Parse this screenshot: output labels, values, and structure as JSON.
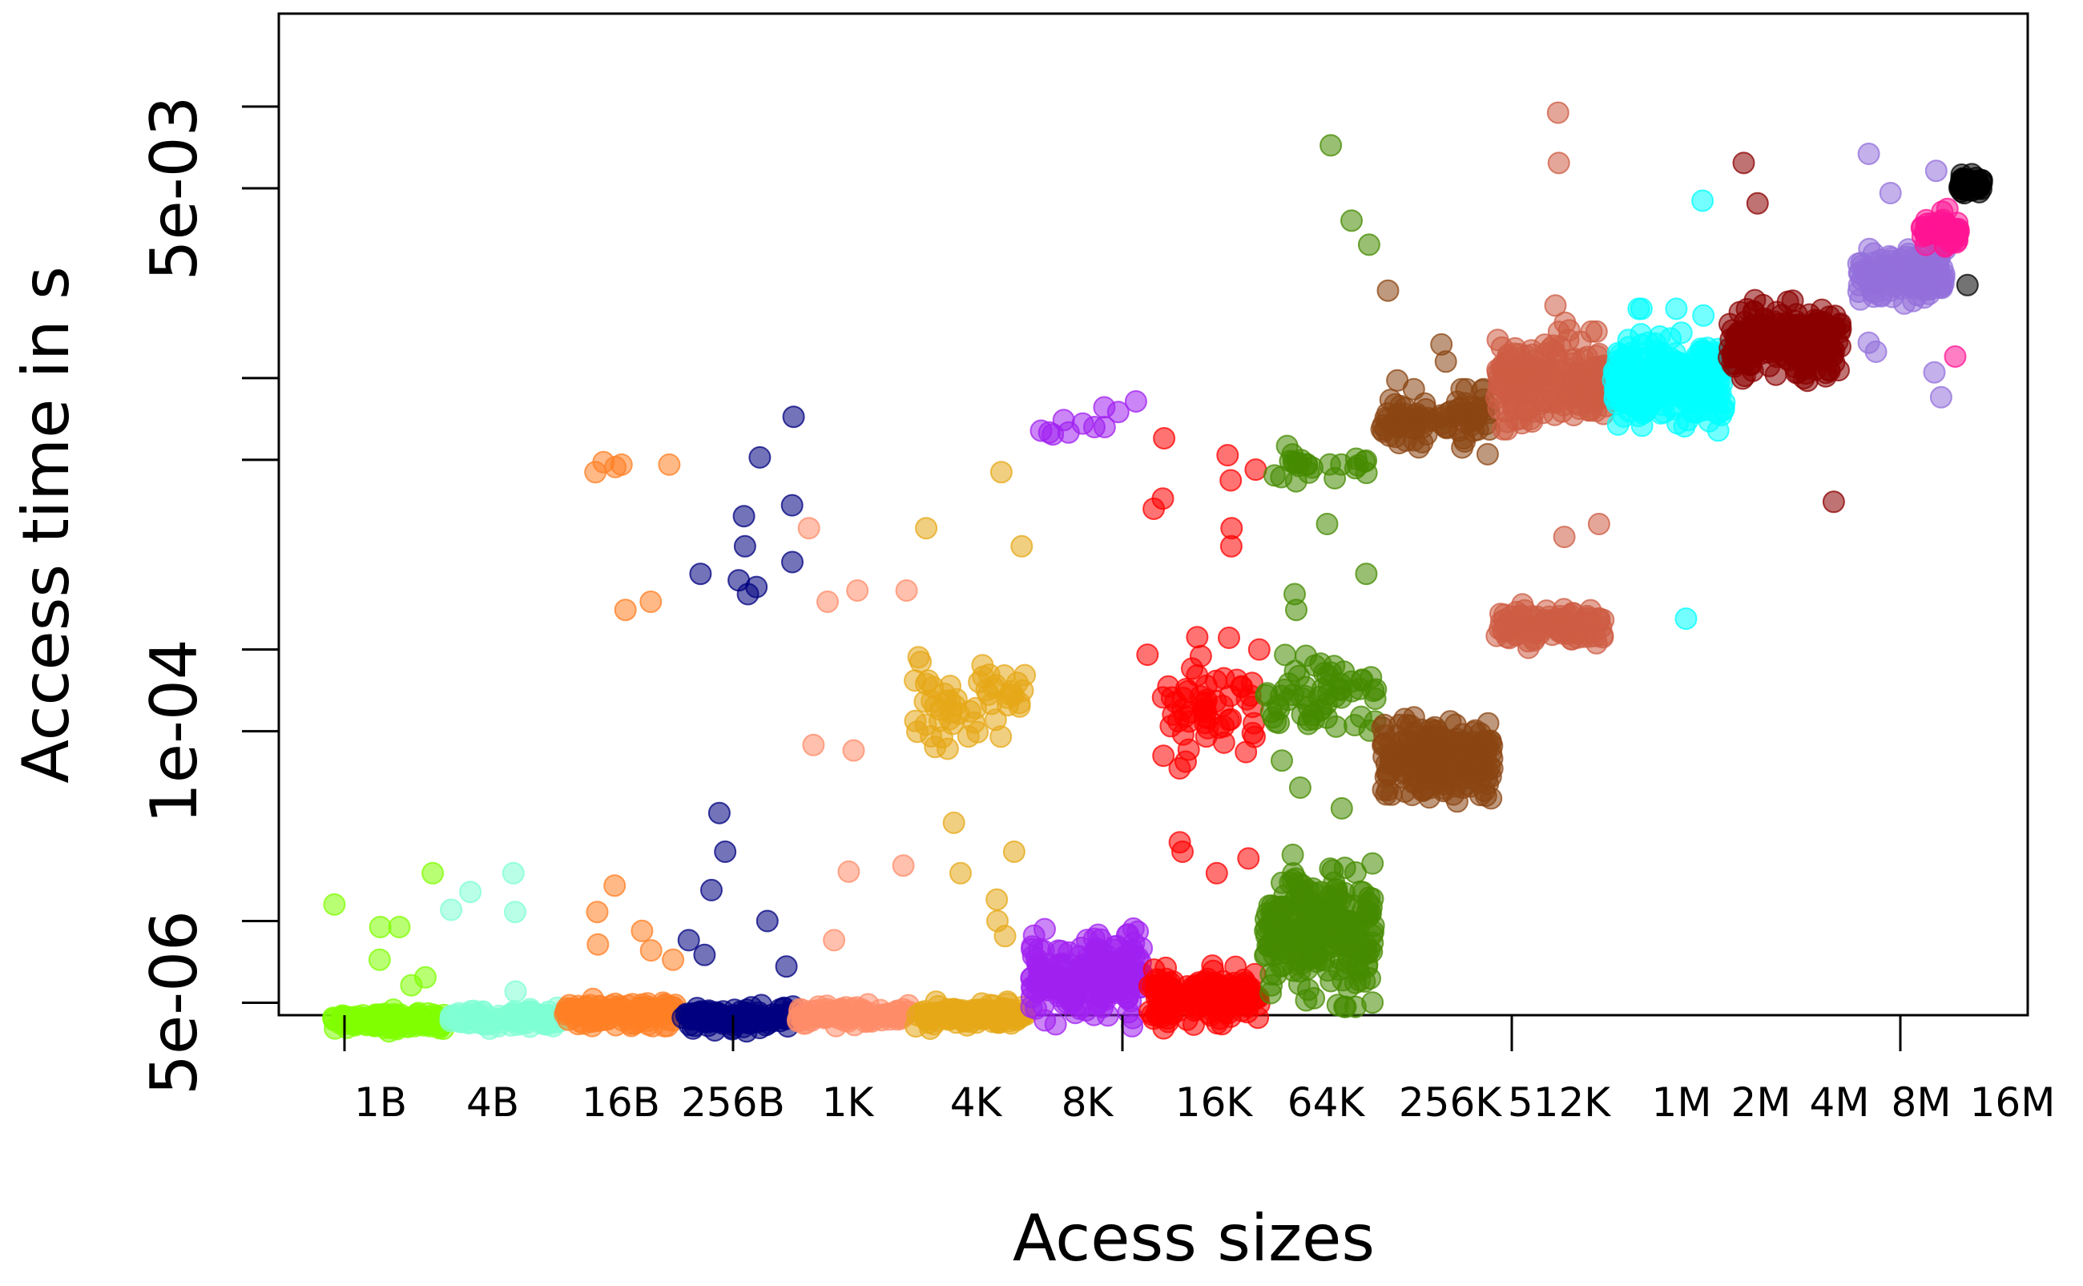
{
  "chart_data": {
    "type": "scatter",
    "title": "",
    "xlabel": "Acess sizes",
    "ylabel": "Access time in s",
    "y_scale": "log",
    "ylim": [
      4.5e-06,
      0.022
    ],
    "y_ticks": [
      5e-06,
      1e-05,
      5e-05,
      0.0001,
      0.0005,
      0.001,
      0.005,
      0.01
    ],
    "y_tick_labels": [
      "5e-06",
      "",
      "1e-04",
      "",
      "",
      "",
      "5e-03",
      ""
    ],
    "categories": [
      "1B",
      "4B",
      "16B",
      "256B",
      "1K",
      "4K",
      "8K",
      "16K",
      "64K",
      "256K",
      "512K",
      "1M",
      "2M",
      "4M",
      "8M",
      "16M"
    ],
    "grid": false,
    "legend": "none",
    "series": [
      {
        "category": "1B",
        "color": "#7FFF00",
        "clusters": [
          {
            "center": 4.3e-06,
            "spread": 0.04,
            "n": 130
          }
        ],
        "outliers": [
          1.5e-05,
          1.15e-05,
          9.5e-06,
          9.5e-06,
          7.2e-06,
          6.2e-06,
          5.8e-06
        ]
      },
      {
        "category": "4B",
        "color": "#7FFFD4",
        "clusters": [
          {
            "center": 4.4e-06,
            "spread": 0.04,
            "n": 120
          }
        ],
        "outliers": [
          1.5e-05,
          1.08e-05,
          1.1e-05,
          1.28e-05,
          5.5e-06
        ]
      },
      {
        "category": "16B",
        "color": "#FF7F24",
        "clusters": [
          {
            "center": 4.6e-06,
            "spread": 0.05,
            "n": 120
          }
        ],
        "outliers": [
          0.00048,
          0.00047,
          0.00048,
          0.00049,
          0.00045,
          0.00014,
          0.00015,
          1.35e-05,
          1.08e-05,
          9.2e-06,
          8.2e-06,
          7.8e-06,
          7.2e-06
        ]
      },
      {
        "category": "256B",
        "color": "#000080",
        "clusters": [
          {
            "center": 4.4e-06,
            "spread": 0.05,
            "n": 120
          }
        ],
        "outliers": [
          0.00072,
          0.00051,
          0.00034,
          0.00031,
          0.00021,
          0.00019,
          0.00018,
          0.00017,
          0.00016,
          0.00024,
          2.5e-05,
          1.8e-05,
          1.3e-05,
          1e-05,
          8.5e-06,
          7.5e-06,
          6.8e-06
        ]
      },
      {
        "category": "1K",
        "color": "#FF8C69",
        "clusters": [
          {
            "center": 4.5e-06,
            "spread": 0.04,
            "n": 110
          }
        ],
        "outliers": [
          0.00028,
          0.000165,
          0.00015,
          0.000165,
          4.25e-05,
          4.45e-05,
          1.6e-05,
          1.52e-05,
          8.5e-06
        ]
      },
      {
        "category": "4K",
        "color": "#E6A817",
        "clusters": [
          {
            "center": 4.5e-06,
            "spread": 0.05,
            "n": 120
          },
          {
            "center": 6.25e-05,
            "spread": 0.22,
            "n": 55
          }
        ],
        "outliers": [
          0.00045,
          0.00028,
          0.00024,
          2.3e-05,
          1.8e-05,
          1.5e-05,
          1.2e-05,
          1e-05,
          8.8e-06
        ]
      },
      {
        "category": "8K",
        "color": "#A020F0",
        "clusters": [
          {
            "center": 6.2e-06,
            "spread": 0.18,
            "n": 200
          }
        ],
        "outliers": [
          0.00082,
          0.00078,
          0.00068,
          0.00066,
          0.00062,
          0.00063,
          0.0007,
          0.00066,
          0.00075,
          0.00064,
          0.00063
        ]
      },
      {
        "category": "16K",
        "color": "#FF0000",
        "clusters": [
          {
            "center": 5.2e-06,
            "spread": 0.12,
            "n": 140
          },
          {
            "center": 6.25e-05,
            "spread": 0.28,
            "n": 60
          }
        ],
        "outliers": [
          0.0006,
          0.00052,
          0.00046,
          0.00042,
          0.00036,
          0.00033,
          0.00028,
          0.00024,
          1.8e-05,
          1.5e-05,
          1.7e-05,
          1.95e-05
        ]
      },
      {
        "category": "64K",
        "color": "#458B00",
        "clusters": [
          {
            "center": 9.2e-06,
            "spread": 0.28,
            "n": 240
          },
          {
            "center": 6.8e-05,
            "spread": 0.22,
            "n": 60
          },
          {
            "center": 0.00048,
            "spread": 0.08,
            "n": 24
          }
        ],
        "outliers": [
          0.0072,
          0.0038,
          0.0031,
          0.00029,
          0.00016,
          0.00014,
          0.00019,
          3.9e-05,
          3.1e-05,
          2.6e-05
        ]
      },
      {
        "category": "256K",
        "color": "#8B4513",
        "clusters": [
          {
            "center": 3.95e-05,
            "spread": 0.16,
            "n": 220
          },
          {
            "center": 0.00069,
            "spread": 0.12,
            "n": 90
          }
        ],
        "outliers": [
          0.0021,
          0.00133,
          0.00115,
          0.00098,
          0.00091
        ]
      },
      {
        "category": "512K",
        "color": "#CD5C44",
        "clusters": [
          {
            "center": 0.000122,
            "spread": 0.08,
            "n": 110
          },
          {
            "center": 0.00098,
            "spread": 0.18,
            "n": 220
          }
        ],
        "outliers": [
          0.0062,
          0.0095,
          0.00185,
          0.0016,
          0.0015,
          0.00029,
          0.00026
        ]
      },
      {
        "category": "1M",
        "color": "#00FFFF",
        "clusters": [
          {
            "center": 0.00097,
            "spread": 0.18,
            "n": 220
          }
        ],
        "outliers": [
          0.0045,
          0.0018,
          0.0018,
          0.0018,
          0.0017,
          0.00013
        ]
      },
      {
        "category": "2M",
        "color": "#8B0000",
        "clusters": [
          {
            "center": 0.00134,
            "spread": 0.16,
            "n": 220
          }
        ],
        "outliers": [
          0.0062,
          0.0044,
          0.00035
        ]
      },
      {
        "category": "4M",
        "color": "#9370DB",
        "clusters": [
          {
            "center": 0.0024,
            "spread": 0.12,
            "n": 130
          }
        ],
        "outliers": [
          0.0067,
          0.0058,
          0.0048,
          0.0035,
          0.0031,
          0.00135,
          0.00125,
          0.00105,
          0.00085
        ]
      },
      {
        "category": "8M",
        "color": "#FF1493",
        "clusters": [
          {
            "center": 0.0035,
            "spread": 0.06,
            "n": 70
          }
        ],
        "outliers": [
          0.0042,
          0.0041,
          0.0012
        ]
      },
      {
        "category": "16M",
        "color": "#000000",
        "clusters": [
          {
            "center": 0.0052,
            "spread": 0.035,
            "n": 60
          }
        ],
        "outliers": [
          0.0022
        ]
      }
    ]
  }
}
